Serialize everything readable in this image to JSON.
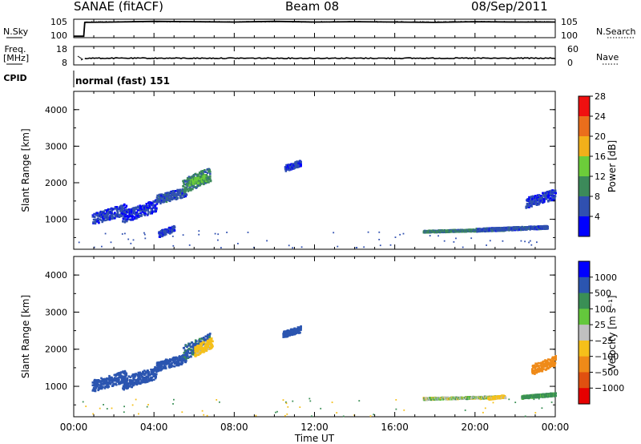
{
  "header": {
    "station": "SANAE (fitACF)",
    "beam": "Beam 08",
    "date": "08/Sep/2011"
  },
  "left_labels": {
    "nsky": "N.Sky",
    "freq_top": "Freq.",
    "freq_unit": "[MHz]",
    "cpid": "CPID"
  },
  "right_labels": {
    "nsearch": "N.Search",
    "nave": "Nave"
  },
  "cpid_text": "normal (fast) 151",
  "chart_data": [
    {
      "type": "line",
      "name": "noise-strip",
      "left_ticks": [
        "10^5",
        "10^0"
      ],
      "right_ticks": [
        "10^5",
        "10^0"
      ],
      "x": [
        0,
        0.5,
        0.55,
        2,
        4,
        6,
        8,
        10,
        12,
        14,
        16,
        18,
        20,
        22,
        24
      ],
      "nsky_log10": [
        0.2,
        0.2,
        4.3,
        4.4,
        4.6,
        4.5,
        4.4,
        4.6,
        4.4,
        4.5,
        4.4,
        4.3,
        4.5,
        4.4,
        4.4
      ],
      "ylim": [
        0,
        5
      ]
    },
    {
      "type": "line",
      "name": "freq-nave-strip",
      "left_ticks": [
        "18",
        "8"
      ],
      "right_ticks": [
        "60",
        "0"
      ],
      "x": [
        0.55,
        24
      ],
      "freq_mhz": [
        11.5,
        11.5
      ],
      "nave": [
        36,
        36
      ],
      "ylim_freq": [
        8,
        18
      ],
      "ylim_nave": [
        0,
        60
      ]
    },
    {
      "type": "heatmap",
      "name": "power",
      "xlabel": "",
      "ylabel": "Slant Range [km]",
      "ylim": [
        180,
        4500
      ],
      "xlim": [
        0,
        24
      ],
      "yticks": [
        "1000",
        "2000",
        "3000",
        "4000"
      ],
      "colorbar_label": "Power [dB]",
      "colorbar_ticks": [
        "4",
        "8",
        "12",
        "16",
        "20",
        "24",
        "28"
      ],
      "colorbar_colors": [
        "#0000ff",
        "#3050b0",
        "#3c8a5a",
        "#6ccd3a",
        "#f2b01a",
        "#ea6e1c",
        "#f01010"
      ],
      "patches": [
        {
          "t": [
            0.9,
            2.6
          ],
          "r": [
            850,
            1400
          ],
          "value": 5
        },
        {
          "t": [
            2.4,
            4.1
          ],
          "r": [
            900,
            1500
          ],
          "value": 4
        },
        {
          "t": [
            4.1,
            5.6
          ],
          "r": [
            1400,
            1850
          ],
          "value": 6
        },
        {
          "t": [
            5.4,
            6.8
          ],
          "r": [
            1700,
            2400
          ],
          "value": 9
        },
        {
          "t": [
            5.7,
            6.6
          ],
          "r": [
            1900,
            2200
          ],
          "value": 13
        },
        {
          "t": [
            10.5,
            11.3
          ],
          "r": [
            2300,
            2600
          ],
          "value": 5
        },
        {
          "t": [
            17.4,
            21.5
          ],
          "r": [
            620,
            720
          ],
          "value": 9
        },
        {
          "t": [
            20.0,
            23.6
          ],
          "r": [
            650,
            800
          ],
          "value": 6
        },
        {
          "t": [
            22.5,
            24.0
          ],
          "r": [
            1300,
            1800
          ],
          "value": 5
        },
        {
          "t": [
            4.2,
            5.0
          ],
          "r": [
            500,
            800
          ],
          "value": 5
        }
      ]
    },
    {
      "type": "heatmap",
      "name": "velocity",
      "xlabel": "Time UT",
      "ylabel": "Slant Range [km]",
      "ylim": [
        180,
        4500
      ],
      "xlim": [
        0,
        24
      ],
      "yticks": [
        "1000",
        "2000",
        "3000",
        "4000"
      ],
      "xticks": [
        "00:00",
        "04:00",
        "08:00",
        "12:00",
        "16:00",
        "20:00",
        "00:00"
      ],
      "colorbar_label": "Velocity [m s^-1]",
      "colorbar_ticks": [
        "1000",
        "500",
        "100",
        "25",
        "-25",
        "-100",
        "-500",
        "-1000"
      ],
      "colorbar_colors": [
        "#0000ff",
        "#2b55b0",
        "#3a8f55",
        "#64c83c",
        "#c0c0c0",
        "#f5c01a",
        "#ef8a18",
        "#e05010",
        "#e60000"
      ],
      "patches": [
        {
          "t": [
            0.9,
            2.6
          ],
          "r": [
            850,
            1400
          ],
          "value": 150
        },
        {
          "t": [
            2.4,
            4.1
          ],
          "r": [
            900,
            1500
          ],
          "value": 150
        },
        {
          "t": [
            4.1,
            5.6
          ],
          "r": [
            1400,
            1850
          ],
          "value": 300
        },
        {
          "t": [
            5.4,
            6.8
          ],
          "r": [
            1700,
            2400
          ],
          "value": 120
        },
        {
          "t": [
            6.0,
            6.9
          ],
          "r": [
            1800,
            2300
          ],
          "value": -60
        },
        {
          "t": [
            10.4,
            11.3
          ],
          "r": [
            2300,
            2600
          ],
          "value": 200
        },
        {
          "t": [
            17.4,
            21.5
          ],
          "r": [
            620,
            720
          ],
          "value": 0
        },
        {
          "t": [
            20.6,
            21.4
          ],
          "r": [
            620,
            740
          ],
          "value": -60
        },
        {
          "t": [
            22.3,
            24.0
          ],
          "r": [
            650,
            800
          ],
          "value": 60
        },
        {
          "t": [
            22.8,
            24.0
          ],
          "r": [
            1300,
            1800
          ],
          "value": -300
        }
      ]
    }
  ]
}
